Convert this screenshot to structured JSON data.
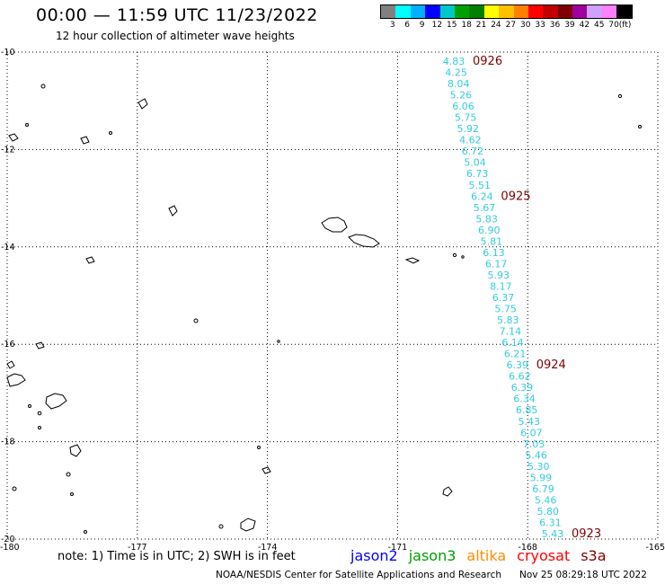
{
  "header": {
    "title": "00:00  —  11:59 UTC 11/23/2022",
    "subtitle": "12 hour collection of altimeter wave heights"
  },
  "color_scale": {
    "colors": [
      "#808080",
      "#00ffff",
      "#00b0ff",
      "#0000ff",
      "#00c8c8",
      "#00a000",
      "#008000",
      "#ffff00",
      "#ffc000",
      "#ff8000",
      "#ff0000",
      "#c00000",
      "#800000",
      "#a000a0",
      "#d0a0ff",
      "#ff80ff",
      "#000000"
    ],
    "labels": [
      "3",
      "6",
      "9",
      "12",
      "15",
      "18",
      "21",
      "24",
      "27",
      "30",
      "33",
      "36",
      "39",
      "42",
      "45",
      "70",
      "(ft)"
    ]
  },
  "map": {
    "lon_range": [
      -180,
      -165
    ],
    "lat_range": [
      -20,
      -10
    ],
    "lon_ticks": [
      "-180",
      "-177",
      "-174",
      "-171",
      "-168",
      "-165"
    ],
    "lat_ticks": [
      "-10",
      "-12",
      "-14",
      "-16",
      "-18",
      "-20"
    ],
    "grid": true
  },
  "track": {
    "color": "#33ccdd",
    "label_color": "#800000",
    "readings": [
      "4.83",
      "4.25",
      "8.04",
      "5.26",
      "6.06",
      "5.75",
      "5.92",
      "4.62",
      "6.72",
      "5.04",
      "6.73",
      "5.51",
      "6.24",
      "5.67",
      "5.83",
      "6.90",
      "5.81",
      "6.13",
      "6.17",
      "5.93",
      "8.17",
      "6.37",
      "5.75",
      "5.83",
      "7.14",
      "6.14",
      "6.21",
      "6.39",
      "6.62",
      "6.39",
      "6.34",
      "6.85",
      "5.43",
      "6.07",
      "7.03",
      "5.46",
      "5.30",
      "5.99",
      "6.79",
      "5.46",
      "5.80",
      "6.31",
      "5.43"
    ],
    "time_labels": [
      {
        "text": "0926",
        "index": 0
      },
      {
        "text": "0925",
        "index": 12
      },
      {
        "text": "0924",
        "index": 27
      },
      {
        "text": "0923",
        "index": 42
      }
    ]
  },
  "footer": {
    "note": "note:  1) Time is in UTC;  2) SWH is in feet",
    "satellites": [
      {
        "name": "jason2",
        "color": "#0000ff"
      },
      {
        "name": "jason3",
        "color": "#00a000"
      },
      {
        "name": "altika",
        "color": "#ff8c00"
      },
      {
        "name": "cryosat",
        "color": "#ff0000"
      },
      {
        "name": "s3a",
        "color": "#800000"
      }
    ],
    "credit": "NOAA/NESDIS Center for Satellite Applications and Research",
    "timestamp": "Nov 25 08:29:18 UTC 2022"
  }
}
